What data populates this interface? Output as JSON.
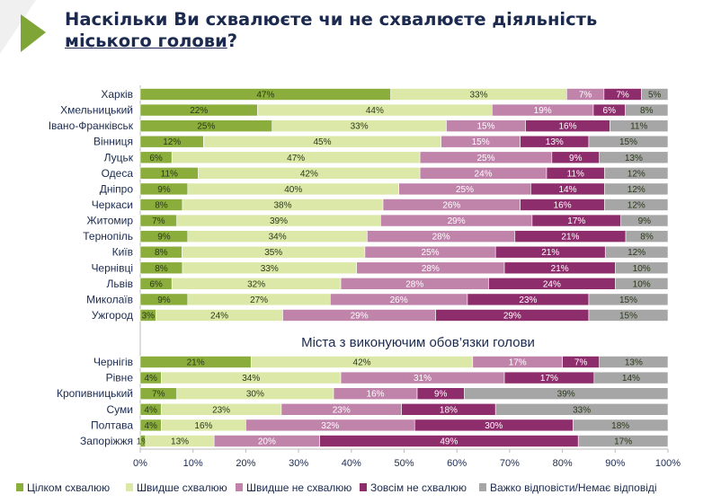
{
  "title": {
    "line1": "Наскільки Ви схвалюєте чи не схвалюєте діяльність",
    "line2_underlined": "міського голови",
    "line2_suffix": "?"
  },
  "chart_data": {
    "type": "bar",
    "orientation": "horizontal",
    "stacked": "100%",
    "xlim": [
      0,
      100
    ],
    "x_ticks": [
      "0%",
      "10%",
      "20%",
      "30%",
      "40%",
      "50%",
      "60%",
      "70%",
      "80%",
      "90%",
      "100%"
    ],
    "legend_position": "bottom",
    "series": [
      {
        "name": "Цілком схвалюю",
        "color": "#8aad3b"
      },
      {
        "name": "Швидше схвалюю",
        "color": "#dce8a8"
      },
      {
        "name": "Швидше не схвалюю",
        "color": "#c084ab"
      },
      {
        "name": "Зовсім не схвалюю",
        "color": "#8e2d6b"
      },
      {
        "name": "Важко відповісти/Немає відповіді",
        "color": "#a6a6a6"
      }
    ],
    "groups": [
      {
        "title": "",
        "rows": [
          {
            "city": "Харків",
            "values": [
              47,
              33,
              7,
              7,
              5
            ]
          },
          {
            "city": "Хмельницький",
            "values": [
              22,
              44,
              19,
              6,
              8
            ]
          },
          {
            "city": "Івано-Франківськ",
            "values": [
              25,
              33,
              15,
              16,
              11
            ]
          },
          {
            "city": "Вінниця",
            "values": [
              12,
              45,
              15,
              13,
              15
            ]
          },
          {
            "city": "Луцьк",
            "values": [
              6,
              47,
              25,
              9,
              13
            ]
          },
          {
            "city": "Одеса",
            "values": [
              11,
              42,
              24,
              11,
              12
            ]
          },
          {
            "city": "Дніпро",
            "values": [
              9,
              40,
              25,
              14,
              12
            ]
          },
          {
            "city": "Черкаси",
            "values": [
              8,
              38,
              26,
              16,
              12
            ]
          },
          {
            "city": "Житомир",
            "values": [
              7,
              39,
              29,
              17,
              9
            ]
          },
          {
            "city": "Тернопіль",
            "values": [
              9,
              34,
              28,
              21,
              8
            ]
          },
          {
            "city": "Київ",
            "values": [
              8,
              35,
              25,
              21,
              12
            ]
          },
          {
            "city": "Чернівці",
            "values": [
              8,
              33,
              28,
              21,
              10
            ]
          },
          {
            "city": "Львів",
            "values": [
              6,
              32,
              28,
              24,
              10
            ]
          },
          {
            "city": "Миколаїв",
            "values": [
              9,
              27,
              26,
              23,
              15
            ]
          },
          {
            "city": "Ужгород",
            "values": [
              3,
              24,
              29,
              29,
              15
            ]
          }
        ]
      },
      {
        "title": "Міста з виконуючим обов’язки голови",
        "rows": [
          {
            "city": "Чернігів",
            "values": [
              21,
              42,
              17,
              7,
              13
            ]
          },
          {
            "city": "Рівне",
            "values": [
              4,
              34,
              31,
              17,
              14
            ]
          },
          {
            "city": "Кропивницький",
            "values": [
              7,
              30,
              16,
              9,
              39
            ]
          },
          {
            "city": "Суми",
            "values": [
              4,
              23,
              23,
              18,
              33
            ]
          },
          {
            "city": "Полтава",
            "values": [
              4,
              16,
              32,
              30,
              18
            ]
          },
          {
            "city": "Запоріжжя",
            "values": [
              1,
              13,
              20,
              49,
              17
            ]
          }
        ]
      }
    ]
  }
}
